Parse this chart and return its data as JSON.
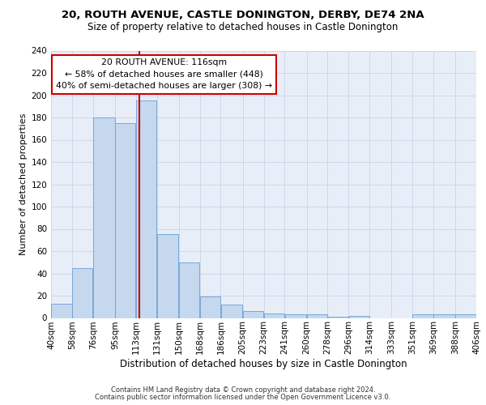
{
  "title1": "20, ROUTH AVENUE, CASTLE DONINGTON, DERBY, DE74 2NA",
  "title2": "Size of property relative to detached houses in Castle Donington",
  "xlabel": "Distribution of detached houses by size in Castle Donington",
  "ylabel": "Number of detached properties",
  "footnote1": "Contains HM Land Registry data © Crown copyright and database right 2024.",
  "footnote2": "Contains public sector information licensed under the Open Government Licence v3.0.",
  "annotation_line1": "20 ROUTH AVENUE: 116sqm",
  "annotation_line2": "← 58% of detached houses are smaller (448)",
  "annotation_line3": "40% of semi-detached houses are larger (308) →",
  "bin_edges": [
    40,
    58,
    76,
    95,
    113,
    131,
    150,
    168,
    186,
    205,
    223,
    241,
    260,
    278,
    296,
    314,
    333,
    351,
    369,
    388,
    406
  ],
  "bin_labels": [
    "40sqm",
    "58sqm",
    "76sqm",
    "95sqm",
    "113sqm",
    "131sqm",
    "150sqm",
    "168sqm",
    "186sqm",
    "205sqm",
    "223sqm",
    "241sqm",
    "260sqm",
    "278sqm",
    "296sqm",
    "314sqm",
    "333sqm",
    "351sqm",
    "369sqm",
    "388sqm",
    "406sqm"
  ],
  "bar_heights": [
    13,
    45,
    180,
    175,
    195,
    75,
    50,
    19,
    12,
    6,
    4,
    3,
    3,
    1,
    2,
    0,
    0,
    3,
    3,
    3
  ],
  "bar_color": "#c5d8ee",
  "bar_edge_color": "#6a9fd8",
  "vline_color": "#cc0000",
  "vline_x": 116,
  "ylim": [
    0,
    240
  ],
  "yticks": [
    0,
    20,
    40,
    60,
    80,
    100,
    120,
    140,
    160,
    180,
    200,
    220,
    240
  ],
  "grid_color": "#c8d4e8",
  "bg_color": "#e8eef8",
  "title1_fontsize": 9.5,
  "title2_fontsize": 8.5,
  "ylabel_fontsize": 8,
  "xlabel_fontsize": 8.5,
  "tick_fontsize": 7.5,
  "annotation_fontsize": 7.8,
  "footnote_fontsize": 6.0
}
